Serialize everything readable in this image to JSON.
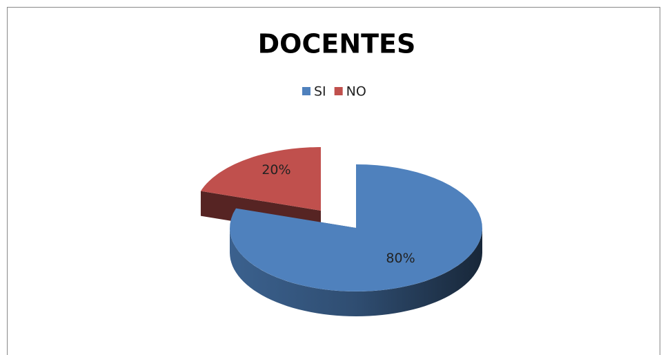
{
  "chart_data": {
    "type": "pie",
    "title": "DOCENTES",
    "categories": [
      "SI",
      "NO"
    ],
    "values": [
      80,
      20
    ],
    "value_labels": [
      "80%",
      "20%"
    ],
    "colors": [
      "#4f81bd",
      "#c0504d"
    ],
    "legend": "top"
  }
}
